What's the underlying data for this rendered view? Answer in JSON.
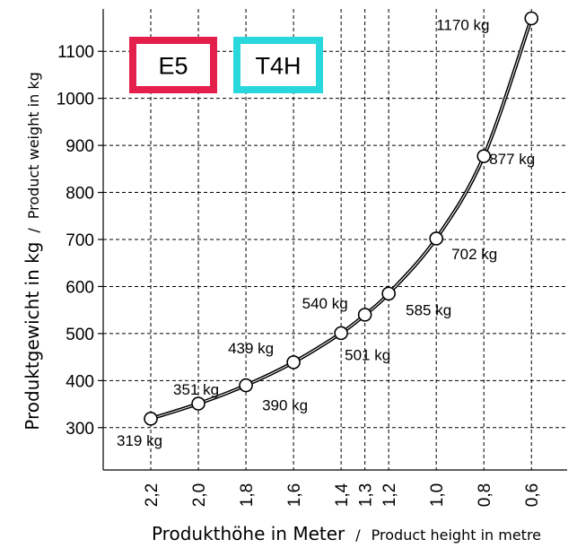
{
  "chart_data": {
    "type": "line",
    "xlabel": "Produkthöhe in Meter",
    "xlabel_sub": "Product height in metre",
    "ylabel": "Produktgewicht in kg",
    "ylabel_sub": "Product weight in kg",
    "separator": "/",
    "x_tick_labels": [
      "2,2",
      "2,0",
      "1,8",
      "1,6",
      "1,4",
      "1,3",
      "1,2",
      "1,0",
      "0,8",
      "0,6"
    ],
    "x_ticks": [
      2.2,
      2.0,
      1.8,
      1.6,
      1.4,
      1.3,
      1.2,
      1.0,
      0.8,
      0.6
    ],
    "x_reversed": true,
    "xlim": [
      2.4,
      0.45
    ],
    "y_ticks": [
      300,
      400,
      500,
      600,
      700,
      800,
      900,
      1000,
      1100
    ],
    "ylim": [
      210,
      1190
    ],
    "grid": true,
    "series": [
      {
        "x": [
          2.2,
          2.0,
          1.8,
          1.6,
          1.4,
          1.3,
          1.2,
          1.0,
          0.8,
          0.6
        ],
        "y": [
          319,
          351,
          390,
          439,
          501,
          540,
          585,
          702,
          877,
          1170
        ],
        "labels": [
          "319 kg",
          "351 kg",
          "390 kg",
          "439 kg",
          "501 kg",
          "540 kg",
          "585 kg",
          "702 kg",
          "877 kg",
          "1170 kg"
        ]
      }
    ],
    "badges": [
      {
        "text": "E5",
        "border_color": "#e41f4b"
      },
      {
        "text": "T4H",
        "border_color": "#28d8dc"
      }
    ],
    "line_color": "#000000"
  }
}
